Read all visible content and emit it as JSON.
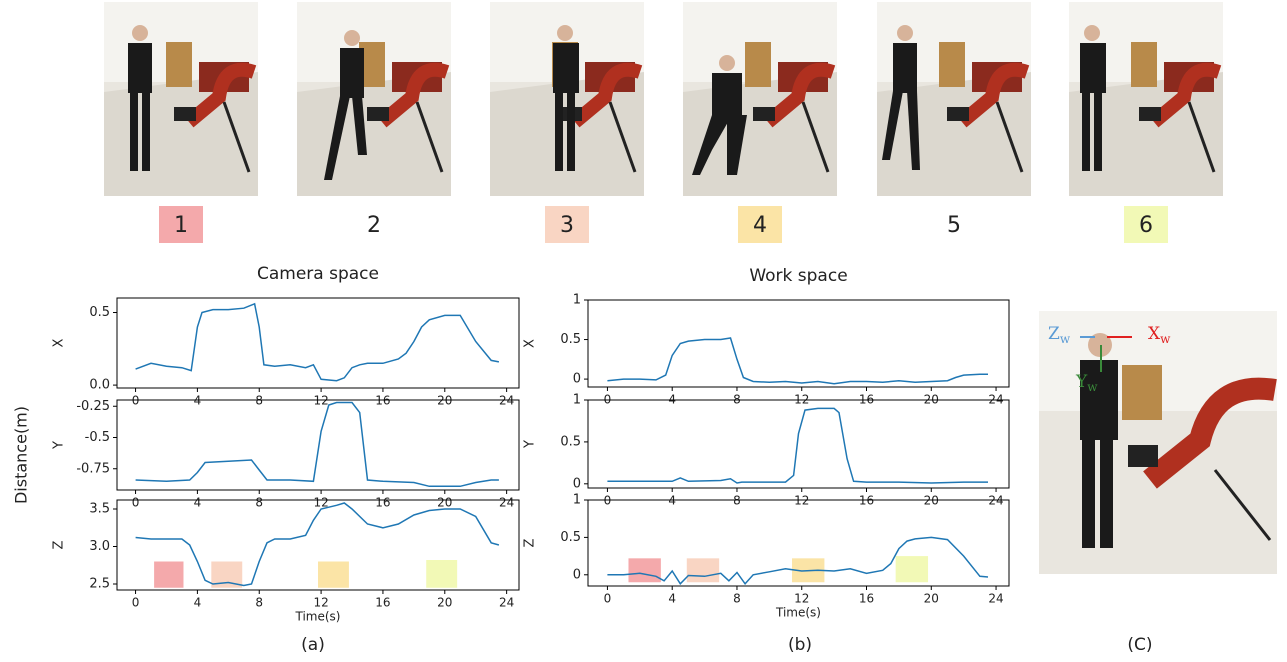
{
  "frames": [
    {
      "label": "1",
      "color": "#f4a9ab"
    },
    {
      "label": "2",
      "color": "#ffffff"
    },
    {
      "label": "3",
      "color": "#f9d5c3"
    },
    {
      "label": "4",
      "color": "#fbe4a6"
    },
    {
      "label": "5",
      "color": "#ffffff"
    },
    {
      "label": "6",
      "color": "#f2f9b6"
    }
  ],
  "y_label": "Distance(m)",
  "captions": [
    "(a)",
    "(b)",
    "(C)"
  ],
  "axis_labels": [
    {
      "letter": "Z",
      "sub": "w",
      "color": "#5b9bd5"
    },
    {
      "letter": "X",
      "sub": "w",
      "color": "#e02020"
    },
    {
      "letter": "Y",
      "sub": "w",
      "color": "#3a8a3a"
    }
  ],
  "chart_data": [
    {
      "type": "line",
      "title": "Camera space",
      "ylabel": "X",
      "color": "#1f77b4",
      "x": [
        0,
        1,
        2,
        3,
        3.6,
        4,
        4.3,
        5,
        6,
        7,
        7.7,
        8,
        8.3,
        9,
        10,
        11,
        11.5,
        12,
        13,
        13.5,
        14,
        14.5,
        15,
        16,
        17,
        17.5,
        18,
        18.5,
        19,
        20,
        21,
        22,
        23,
        23.5
      ],
      "values": [
        0.11,
        0.15,
        0.13,
        0.12,
        0.1,
        0.4,
        0.5,
        0.52,
        0.52,
        0.53,
        0.56,
        0.4,
        0.14,
        0.13,
        0.14,
        0.12,
        0.14,
        0.04,
        0.03,
        0.05,
        0.12,
        0.14,
        0.15,
        0.15,
        0.18,
        0.22,
        0.3,
        0.4,
        0.45,
        0.48,
        0.48,
        0.3,
        0.17,
        0.16
      ],
      "xlim": [
        -1.2,
        24.8
      ],
      "xticks": [
        0,
        4,
        8,
        12,
        16,
        20,
        24
      ],
      "ylim": [
        -0.02,
        0.6
      ],
      "yticks": [
        {
          "value": 0,
          "label": "0.0"
        },
        {
          "value": 0.5,
          "label": "0.5"
        }
      ]
    },
    {
      "type": "line",
      "ylabel": "Y",
      "color": "#1f77b4",
      "x": [
        0,
        2,
        3.5,
        4,
        4.5,
        6,
        7.5,
        8,
        8.5,
        10,
        11.5,
        12,
        12.5,
        13,
        14,
        14.5,
        15,
        16,
        18,
        19,
        20,
        21,
        22,
        23,
        23.5
      ],
      "values": [
        -0.84,
        -0.85,
        -0.84,
        -0.78,
        -0.7,
        -0.69,
        -0.68,
        -0.76,
        -0.84,
        -0.84,
        -0.85,
        -0.45,
        -0.24,
        -0.22,
        -0.22,
        -0.3,
        -0.84,
        -0.85,
        -0.86,
        -0.89,
        -0.89,
        -0.89,
        -0.86,
        -0.84,
        -0.84
      ],
      "xlim": [
        -1.2,
        24.8
      ],
      "xticks": [
        0,
        4,
        8,
        12,
        16,
        20,
        24
      ],
      "ylim": [
        -0.92,
        -0.2
      ],
      "yticks": [
        -0.75,
        -0.5,
        -0.25
      ]
    },
    {
      "type": "line",
      "ylabel": "Z",
      "xlabel": "Time(s)",
      "color": "#1f77b4",
      "x": [
        0,
        1,
        2,
        3,
        3.5,
        4,
        4.5,
        5,
        6,
        7,
        7.5,
        8,
        8.5,
        9,
        10,
        11,
        11.5,
        12,
        13,
        13.5,
        14,
        15,
        16,
        17,
        18,
        19,
        20,
        21,
        22,
        23,
        23.5
      ],
      "values": [
        3.12,
        3.1,
        3.1,
        3.1,
        3.02,
        2.8,
        2.55,
        2.5,
        2.52,
        2.48,
        2.5,
        2.8,
        3.05,
        3.1,
        3.1,
        3.15,
        3.35,
        3.5,
        3.55,
        3.58,
        3.5,
        3.3,
        3.25,
        3.3,
        3.42,
        3.48,
        3.5,
        3.5,
        3.4,
        3.05,
        3.02
      ],
      "xlim": [
        -1.2,
        24.8
      ],
      "xticks": [
        0,
        4,
        8,
        12,
        16,
        20,
        24
      ],
      "ylim": [
        2.42,
        3.62
      ],
      "yticks": [
        2.5,
        {
          "value": 3,
          "label": "3.0"
        },
        3.5
      ],
      "highlights": [
        {
          "x": [
            1.2,
            3.1
          ],
          "y": [
            2.45,
            2.8
          ],
          "color": "#f4a9ab"
        },
        {
          "x": [
            4.9,
            6.9
          ],
          "y": [
            2.45,
            2.8
          ],
          "color": "#f9d5c3"
        },
        {
          "x": [
            11.8,
            13.8
          ],
          "y": [
            2.45,
            2.8
          ],
          "color": "#fbe4a6"
        },
        {
          "x": [
            18.8,
            20.8
          ],
          "y": [
            2.45,
            2.82
          ],
          "color": "#f2f9b6"
        }
      ]
    },
    {
      "type": "line",
      "title": "Work space",
      "ylabel": "X",
      "color": "#1f77b4",
      "x": [
        0,
        1,
        2,
        3,
        3.6,
        4,
        4.5,
        5,
        6,
        7,
        7.6,
        8,
        8.4,
        9,
        10,
        11,
        12,
        13,
        14,
        15,
        16,
        17,
        18,
        19,
        20,
        21,
        21.5,
        22,
        23,
        23.5
      ],
      "values": [
        -0.02,
        0,
        0,
        -0.01,
        0.05,
        0.3,
        0.45,
        0.48,
        0.5,
        0.5,
        0.52,
        0.25,
        0.02,
        -0.03,
        -0.04,
        -0.03,
        -0.05,
        -0.03,
        -0.06,
        -0.03,
        -0.03,
        -0.04,
        -0.02,
        -0.04,
        -0.03,
        -0.02,
        0.02,
        0.05,
        0.06,
        0.06
      ],
      "xlim": [
        -1.2,
        24.8
      ],
      "xticks": [
        0,
        4,
        8,
        12,
        16,
        20,
        24
      ],
      "ylim": [
        -0.1,
        1.0
      ],
      "yticks": [
        0,
        0.5,
        1
      ]
    },
    {
      "type": "line",
      "ylabel": "Y",
      "color": "#1f77b4",
      "x": [
        0,
        2,
        4,
        4.5,
        5,
        7,
        7.6,
        8,
        8.3,
        9,
        11,
        11.5,
        11.8,
        12.2,
        13,
        14,
        14.3,
        14.8,
        15.2,
        16,
        18,
        20,
        22,
        23,
        23.5
      ],
      "values": [
        0.03,
        0.03,
        0.03,
        0.07,
        0.03,
        0.04,
        0.06,
        0.01,
        0.02,
        0.02,
        0.02,
        0.1,
        0.6,
        0.88,
        0.9,
        0.9,
        0.85,
        0.3,
        0.03,
        0.02,
        0.02,
        0.01,
        0.02,
        0.02,
        0.02
      ],
      "xlim": [
        -1.2,
        24.8
      ],
      "xticks": [
        0,
        4,
        8,
        12,
        16,
        20,
        24
      ],
      "ylim": [
        -0.05,
        1.0
      ],
      "yticks": [
        0,
        0.5,
        1
      ]
    },
    {
      "type": "line",
      "ylabel": "Z",
      "xlabel": "Time(s)",
      "color": "#1f77b4",
      "x": [
        0,
        1,
        2,
        3,
        3.5,
        4,
        4.5,
        5,
        6,
        7,
        7.5,
        8,
        8.5,
        9,
        10,
        11,
        12,
        13,
        14,
        15,
        16,
        17,
        17.5,
        18,
        18.5,
        19,
        20,
        21,
        22,
        23,
        23.5
      ],
      "values": [
        0,
        0,
        0.02,
        -0.02,
        -0.08,
        0.05,
        -0.12,
        -0.01,
        -0.02,
        0.02,
        -0.08,
        0.03,
        -0.12,
        0,
        0.04,
        0.08,
        0.05,
        0.06,
        0.05,
        0.08,
        0.02,
        0.06,
        0.15,
        0.35,
        0.45,
        0.48,
        0.5,
        0.47,
        0.25,
        -0.02,
        -0.03
      ],
      "xlim": [
        -1.2,
        24.8
      ],
      "xticks": [
        0,
        4,
        8,
        12,
        16,
        20,
        24
      ],
      "ylim": [
        -0.15,
        1.0
      ],
      "yticks": [
        0,
        0.5,
        1
      ],
      "highlights": [
        {
          "x": [
            1.3,
            3.3
          ],
          "y": [
            -0.1,
            0.22
          ],
          "color": "#f4a9ab"
        },
        {
          "x": [
            4.9,
            6.9
          ],
          "y": [
            -0.1,
            0.22
          ],
          "color": "#f9d5c3"
        },
        {
          "x": [
            11.4,
            13.4
          ],
          "y": [
            -0.1,
            0.22
          ],
          "color": "#fbe4a6"
        },
        {
          "x": [
            17.8,
            19.8
          ],
          "y": [
            -0.1,
            0.25
          ],
          "color": "#f2f9b6"
        }
      ]
    }
  ]
}
